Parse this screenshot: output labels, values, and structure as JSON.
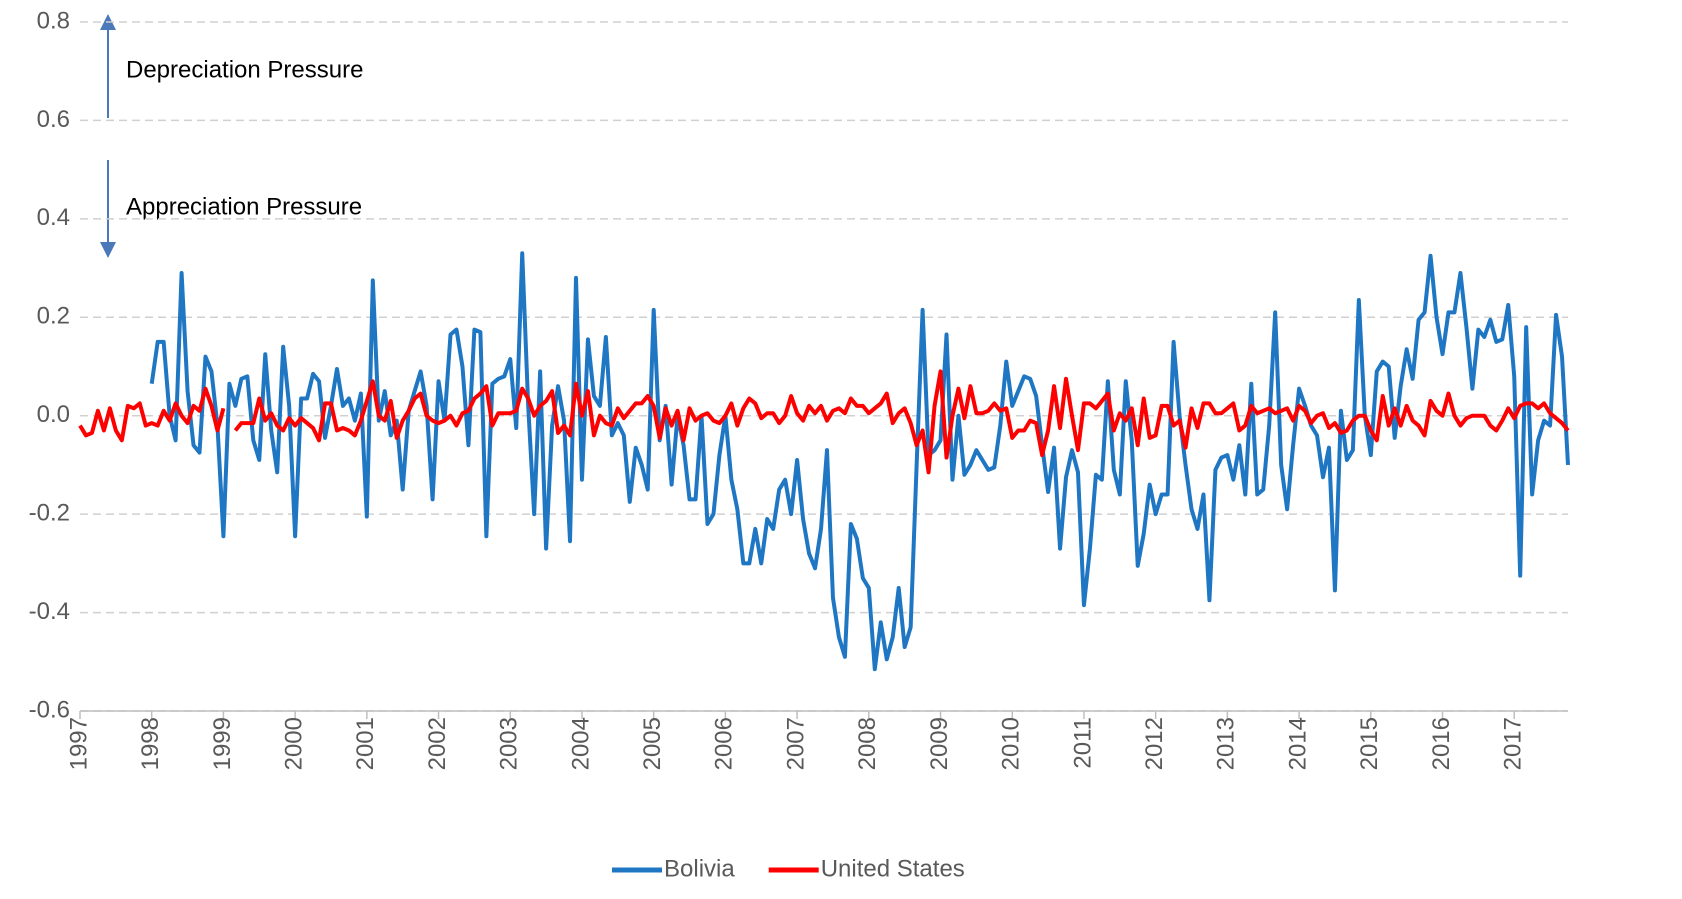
{
  "chart_data": {
    "type": "line",
    "annotations": [
      "Depreciation Pressure",
      "Appreciation Pressure"
    ],
    "categories": [
      "1997",
      null,
      null,
      null,
      null,
      null,
      null,
      null,
      null,
      null,
      null,
      null,
      "1998",
      null,
      null,
      null,
      null,
      null,
      null,
      null,
      null,
      null,
      null,
      null,
      "1999",
      null,
      null,
      null,
      null,
      null,
      null,
      null,
      null,
      null,
      null,
      null,
      "2000",
      null,
      null,
      null,
      null,
      null,
      null,
      null,
      null,
      null,
      null,
      null,
      "2001",
      null,
      null,
      null,
      null,
      null,
      null,
      null,
      null,
      null,
      null,
      null,
      "2002",
      null,
      null,
      null,
      null,
      null,
      null,
      null,
      null,
      null,
      null,
      null,
      "2003",
      null,
      null,
      null,
      null,
      null,
      null,
      null,
      null,
      null,
      null,
      null,
      "2004",
      null,
      null,
      null,
      null,
      null,
      null,
      null,
      null,
      null,
      null,
      null,
      "2005",
      null,
      null,
      null,
      null,
      null,
      null,
      null,
      null,
      null,
      null,
      null,
      "2006",
      null,
      null,
      null,
      null,
      null,
      null,
      null,
      null,
      null,
      null,
      null,
      "2007",
      null,
      null,
      null,
      null,
      null,
      null,
      null,
      null,
      null,
      null,
      null,
      "2008",
      null,
      null,
      null,
      null,
      null,
      null,
      null,
      null,
      null,
      null,
      null,
      "2009",
      null,
      null,
      null,
      null,
      null,
      null,
      null,
      null,
      null,
      null,
      null,
      "2010",
      null,
      null,
      null,
      null,
      null,
      null,
      null,
      null,
      null,
      null,
      null,
      "2011",
      null,
      null,
      null,
      null,
      null,
      null,
      null,
      null,
      null,
      null,
      null,
      "2012",
      null,
      null,
      null,
      null,
      null,
      null,
      null,
      null,
      null,
      null,
      null,
      "2013",
      null,
      null,
      null,
      null,
      null,
      null,
      null,
      null,
      null,
      null,
      null,
      "2014",
      null,
      null,
      null,
      null,
      null,
      null,
      null,
      null,
      null,
      null,
      null,
      "2015",
      null,
      null,
      null,
      null,
      null,
      null,
      null,
      null,
      null,
      null,
      null,
      "2016",
      null,
      null,
      null,
      null,
      null,
      null,
      null,
      null,
      null,
      null,
      null,
      "2017",
      null,
      null,
      null,
      null,
      null,
      null,
      null,
      null,
      null
    ],
    "series": [
      {
        "name": "Bolivia",
        "color": "#1f77c4",
        "values": [
          null,
          null,
          null,
          null,
          null,
          null,
          null,
          null,
          null,
          null,
          null,
          null,
          0.065,
          0.15,
          0.15,
          0.0,
          -0.05,
          0.29,
          0.05,
          -0.06,
          -0.075,
          0.12,
          0.09,
          -0.02,
          -0.245,
          0.065,
          0.02,
          0.075,
          0.08,
          -0.05,
          -0.09,
          0.125,
          -0.03,
          -0.115,
          0.14,
          0.02,
          -0.245,
          0.035,
          0.035,
          0.085,
          0.07,
          -0.045,
          0.02,
          0.095,
          0.02,
          0.035,
          -0.01,
          0.045,
          -0.205,
          0.275,
          -0.01,
          0.05,
          -0.04,
          -0.01,
          -0.15,
          0.01,
          0.05,
          0.09,
          0.02,
          -0.17,
          0.07,
          -0.01,
          0.165,
          0.175,
          0.1,
          -0.06,
          0.175,
          0.17,
          -0.245,
          0.065,
          0.075,
          0.08,
          0.115,
          -0.025,
          0.33,
          0.02,
          -0.2,
          0.09,
          -0.27,
          -0.02,
          0.06,
          -0.01,
          -0.255,
          0.28,
          -0.13,
          0.155,
          0.04,
          0.02,
          0.16,
          -0.04,
          -0.015,
          -0.04,
          -0.175,
          -0.065,
          -0.1,
          -0.15,
          0.215,
          -0.05,
          0.02,
          -0.14,
          0.0,
          -0.06,
          -0.17,
          -0.17,
          0.0,
          -0.22,
          -0.2,
          -0.08,
          0.0,
          -0.13,
          -0.19,
          -0.3,
          -0.3,
          -0.23,
          -0.3,
          -0.21,
          -0.23,
          -0.15,
          -0.13,
          -0.2,
          -0.09,
          -0.21,
          -0.28,
          -0.31,
          -0.23,
          -0.07,
          -0.37,
          -0.45,
          -0.49,
          -0.22,
          -0.25,
          -0.33,
          -0.35,
          -0.515,
          -0.42,
          -0.495,
          -0.45,
          -0.35,
          -0.47,
          -0.43,
          -0.1,
          0.215,
          -0.08,
          -0.07,
          -0.05,
          0.165,
          -0.13,
          0.0,
          -0.12,
          -0.1,
          -0.07,
          -0.09,
          -0.11,
          -0.105,
          -0.02,
          0.11,
          0.02,
          0.05,
          0.08,
          0.075,
          0.04,
          -0.06,
          -0.155,
          -0.065,
          -0.27,
          -0.125,
          -0.07,
          -0.115,
          -0.385,
          -0.27,
          -0.12,
          -0.13,
          0.07,
          -0.11,
          -0.16,
          0.07,
          -0.05,
          -0.305,
          -0.24,
          -0.14,
          -0.2,
          -0.16,
          -0.16,
          0.15,
          0.0,
          -0.1,
          -0.19,
          -0.23,
          -0.16,
          -0.375,
          -0.11,
          -0.085,
          -0.08,
          -0.13,
          -0.06,
          -0.16,
          0.065,
          -0.16,
          -0.15,
          -0.02,
          0.21,
          -0.1,
          -0.19,
          -0.06,
          0.055,
          0.02,
          -0.02,
          -0.04,
          -0.125,
          -0.065,
          -0.355,
          0.01,
          -0.09,
          -0.07,
          0.235,
          0.0,
          -0.08,
          0.09,
          0.11,
          0.1,
          -0.045,
          0.06,
          0.135,
          0.075,
          0.195,
          0.21,
          0.325,
          0.2,
          0.125,
          0.21,
          0.21,
          0.29,
          0.18,
          0.055,
          0.175,
          0.16,
          0.195,
          0.15,
          0.155,
          0.225,
          0.08,
          -0.325,
          0.18,
          -0.16,
          -0.05,
          -0.01,
          -0.02,
          0.205,
          0.12,
          -0.1
        ]
      },
      {
        "name": "United States",
        "color": "#ff0000",
        "values": [
          -0.02,
          -0.04,
          -0.035,
          0.01,
          -0.03,
          0.015,
          -0.03,
          -0.05,
          0.02,
          0.015,
          0.025,
          -0.02,
          -0.015,
          -0.02,
          0.01,
          -0.01,
          0.025,
          0.0,
          -0.015,
          0.02,
          0.01,
          0.055,
          0.02,
          -0.03,
          0.015,
          null,
          -0.03,
          -0.015,
          -0.015,
          -0.015,
          0.035,
          -0.01,
          0.005,
          -0.02,
          -0.03,
          -0.005,
          -0.02,
          -0.005,
          -0.015,
          -0.025,
          -0.05,
          0.025,
          0.025,
          -0.03,
          -0.025,
          -0.03,
          -0.04,
          -0.01,
          0.03,
          0.07,
          0.0,
          -0.01,
          0.03,
          -0.045,
          -0.01,
          0.01,
          0.035,
          0.045,
          0.0,
          -0.01,
          -0.015,
          -0.01,
          0.0,
          -0.02,
          0.005,
          0.01,
          0.035,
          0.045,
          0.06,
          -0.02,
          0.005,
          0.005,
          0.005,
          0.01,
          0.055,
          0.035,
          0.0,
          0.02,
          0.03,
          0.05,
          -0.035,
          -0.02,
          -0.04,
          0.065,
          0.0,
          0.05,
          -0.04,
          0.0,
          -0.015,
          -0.02,
          0.015,
          -0.005,
          0.01,
          0.025,
          0.025,
          0.04,
          0.02,
          -0.045,
          0.015,
          -0.02,
          0.01,
          -0.05,
          0.015,
          -0.01,
          0.0,
          0.005,
          -0.01,
          -0.015,
          0.0,
          0.025,
          -0.02,
          0.015,
          0.035,
          0.025,
          -0.005,
          0.005,
          0.005,
          -0.015,
          0.0,
          0.04,
          0.005,
          -0.01,
          0.02,
          0.005,
          0.02,
          -0.01,
          0.01,
          0.015,
          0.005,
          0.035,
          0.02,
          0.02,
          0.005,
          0.015,
          0.025,
          0.045,
          -0.015,
          0.005,
          0.015,
          -0.015,
          -0.06,
          -0.03,
          -0.115,
          0.02,
          0.09,
          -0.085,
          0.0,
          0.055,
          -0.005,
          0.06,
          0.005,
          0.005,
          0.01,
          0.025,
          0.01,
          0.015,
          -0.045,
          -0.03,
          -0.03,
          -0.01,
          -0.015,
          -0.08,
          -0.03,
          0.06,
          -0.025,
          0.075,
          0.0,
          -0.07,
          0.025,
          0.025,
          0.015,
          0.03,
          0.045,
          -0.03,
          0.005,
          -0.01,
          0.015,
          -0.06,
          0.035,
          -0.045,
          -0.04,
          0.02,
          0.02,
          -0.02,
          -0.01,
          -0.065,
          0.015,
          -0.025,
          0.025,
          0.025,
          0.005,
          0.005,
          0.015,
          0.025,
          -0.03,
          -0.02,
          0.02,
          0.005,
          0.01,
          0.015,
          0.005,
          0.01,
          0.015,
          -0.01,
          0.02,
          0.01,
          -0.015,
          0.0,
          0.005,
          -0.025,
          -0.015,
          -0.035,
          -0.03,
          -0.01,
          0.0,
          0.0,
          -0.03,
          -0.05,
          0.04,
          -0.02,
          0.015,
          -0.02,
          0.02,
          -0.01,
          -0.02,
          -0.04,
          0.03,
          0.01,
          0.0,
          0.045,
          0.0,
          -0.02,
          -0.005,
          0.0,
          0.0,
          0.0,
          -0.02,
          -0.03,
          -0.01,
          0.015,
          -0.005,
          0.02,
          0.025,
          0.025,
          0.015,
          0.025,
          0.005,
          -0.005,
          -0.015,
          -0.03
        ]
      }
    ],
    "ylim": [
      -0.6,
      0.8
    ],
    "yticks": [
      -0.6,
      -0.4,
      -0.2,
      {
        "value": 0,
        "label": "0.0"
      },
      0.2,
      0.4,
      0.6,
      0.8
    ],
    "grid": true,
    "legend": "bottom"
  }
}
